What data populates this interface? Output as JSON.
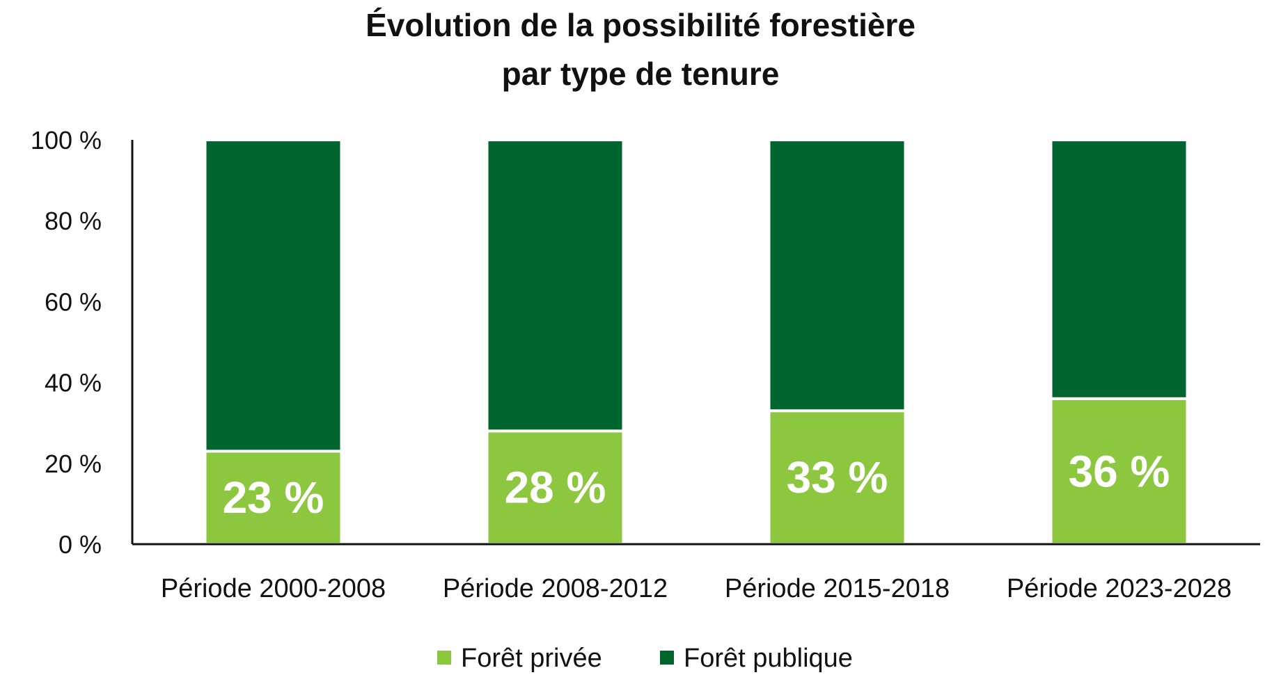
{
  "chart_data": {
    "type": "bar",
    "stacked": true,
    "title_lines": [
      "Évolution de la possibilité forestière",
      "par type de tenure"
    ],
    "categories": [
      "Période 2000-2008",
      "Période 2008-2012",
      "Période 2015-2018",
      "Période 2023-2028"
    ],
    "series": [
      {
        "name": "Forêt privée",
        "color": "#8dc63f",
        "values": [
          23,
          28,
          33,
          36
        ],
        "labels": [
          "23 %",
          "28 %",
          "33 %",
          "36 %"
        ]
      },
      {
        "name": "Forêt publique",
        "color": "#00652e",
        "values": [
          77,
          72,
          67,
          64
        ]
      }
    ],
    "ylim": [
      0,
      100
    ],
    "yticks": [
      {
        "value": 0,
        "label": "0 %"
      },
      {
        "value": 20,
        "label": "20 %"
      },
      {
        "value": 40,
        "label": "40 %"
      },
      {
        "value": 60,
        "label": "60 %"
      },
      {
        "value": 80,
        "label": "80 %"
      },
      {
        "value": 100,
        "label": "100 %"
      }
    ],
    "grid": false,
    "legend_position": "bottom-center"
  }
}
